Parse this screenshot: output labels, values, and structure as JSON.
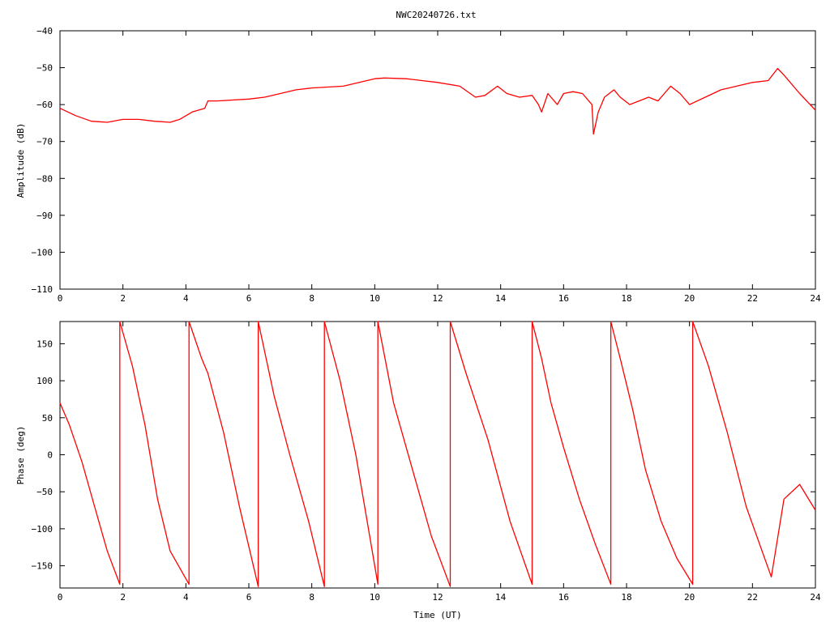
{
  "title": "NWC20240726.txt",
  "chart_data": [
    {
      "type": "line",
      "title": "NWC20240726.txt",
      "xlabel": "",
      "ylabel": "Amplitude (dB)",
      "xlim": [
        0,
        24
      ],
      "ylim": [
        -110,
        -40
      ],
      "xticks": [
        0,
        2,
        4,
        6,
        8,
        10,
        12,
        14,
        16,
        18,
        20,
        22,
        24
      ],
      "yticks": [
        -40,
        -50,
        -60,
        -70,
        -80,
        -90,
        -100,
        -110
      ],
      "grid": false,
      "series": [
        {
          "color": "#ff0000",
          "x": [
            0,
            0.5,
            1,
            1.5,
            2,
            2.5,
            3,
            3.5,
            3.8,
            4.2,
            4.6,
            4.7,
            5,
            6,
            6.5,
            7,
            7.5,
            8,
            9,
            10,
            10.3,
            11,
            11.5,
            12,
            12.7,
            13.2,
            13.5,
            13.9,
            14.2,
            14.6,
            15,
            15.2,
            15.3,
            15.5,
            15.8,
            16,
            16.3,
            16.6,
            16.9,
            16.95,
            17.1,
            17.3,
            17.6,
            17.8,
            18.1,
            18.4,
            18.7,
            19,
            19.2,
            19.4,
            19.7,
            20,
            20.5,
            21,
            21.5,
            22,
            22.5,
            22.8,
            23,
            23.5,
            24
          ],
          "y": [
            -61,
            -63,
            -64.5,
            -64.8,
            -64,
            -64,
            -64.5,
            -64.8,
            -64,
            -62,
            -61,
            -59,
            -59,
            -58.5,
            -58,
            -57,
            -56,
            -55.5,
            -55,
            -53,
            -52.8,
            -53,
            -53.5,
            -54,
            -55,
            -58,
            -57.5,
            -55,
            -57,
            -58,
            -57.5,
            -60,
            -62,
            -57,
            -60,
            -57,
            -56.5,
            -57,
            -60,
            -68,
            -62,
            -58,
            -56,
            -58,
            -60,
            -59,
            -58,
            -59,
            -57,
            -55,
            -57,
            -60,
            -58,
            -56,
            -55,
            -54,
            -53.5,
            -50.2,
            -52,
            -57,
            -61.5
          ]
        }
      ]
    },
    {
      "type": "line",
      "title": "",
      "xlabel": "Time (UT)",
      "ylabel": "Phase (deg)",
      "xlim": [
        0,
        24
      ],
      "ylim": [
        -180,
        180
      ],
      "xticks": [
        0,
        2,
        4,
        6,
        8,
        10,
        12,
        14,
        16,
        18,
        20,
        22,
        24
      ],
      "yticks": [
        150,
        100,
        50,
        0,
        -50,
        -100,
        -150
      ],
      "grid": false,
      "series": [
        {
          "color": "#ff0000",
          "x": [
            0,
            0.3,
            0.7,
            1.1,
            1.5,
            1.9,
            1.9,
            2.3,
            2.7,
            3.1,
            3.5,
            4.1,
            4.1,
            4.5,
            4.7,
            5.2,
            5.7,
            6.3,
            6.3,
            6.8,
            7.3,
            7.9,
            8.4,
            8.4,
            8.9,
            9.4,
            10.1,
            10.1,
            10.6,
            11.2,
            11.8,
            12.4,
            12.4,
            12.9,
            13.6,
            14.3,
            15.0,
            15.0,
            15.3,
            15.6,
            16.0,
            16.5,
            17.0,
            17.5,
            17.5,
            17.8,
            18.2,
            18.6,
            19.1,
            19.6,
            20.1,
            20.1,
            20.6,
            21.2,
            21.8,
            22.6,
            23.0,
            23.5,
            24
          ],
          "y": [
            70,
            40,
            -10,
            -70,
            -130,
            -175,
            180,
            120,
            40,
            -60,
            -130,
            -175,
            180,
            130,
            110,
            30,
            -70,
            -178,
            180,
            80,
            0,
            -90,
            -178,
            180,
            100,
            0,
            -175,
            180,
            70,
            -20,
            -110,
            -178,
            180,
            110,
            20,
            -90,
            -175,
            180,
            130,
            70,
            10,
            -60,
            -120,
            -175,
            180,
            130,
            60,
            -20,
            -90,
            -140,
            -175,
            180,
            120,
            30,
            -70,
            -165,
            -60,
            -40,
            -75
          ]
        }
      ]
    }
  ]
}
